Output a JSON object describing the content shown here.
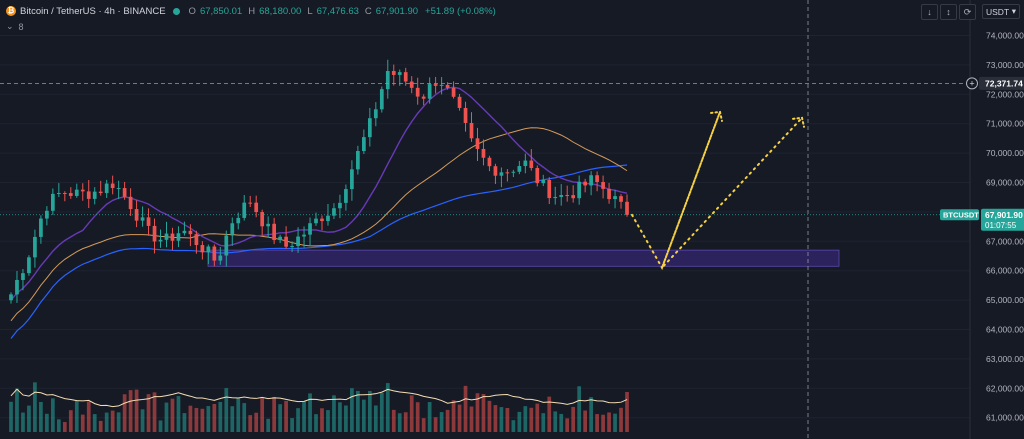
{
  "header": {
    "symbol_title": "Bitcoin / TetherUS · 4h · BINANCE",
    "open_label": "O",
    "open_value": "67,850.01",
    "high_label": "H",
    "high_value": "68,180.00",
    "low_label": "L",
    "low_value": "67,476.63",
    "close_label": "C",
    "close_value": "67,901.90",
    "change": "+51.89 (+0.08%)",
    "indicator_toggle": "⌄",
    "indicator_count": "8"
  },
  "toolbar": {
    "btn1": "↓",
    "btn2": "↕",
    "btn3": "⟳",
    "currency_select": "USDT",
    "currency_caret": "▾"
  },
  "price_axis": {
    "ticks": [
      "74,000.00",
      "73,000.00",
      "72,000.00",
      "71,000.00",
      "70,000.00",
      "69,000.00",
      "68,000.00",
      "67,000.00",
      "66,000.00",
      "65,000.00",
      "64,000.00",
      "63,000.00",
      "62,000.00",
      "61,000.00"
    ],
    "crosshair_price": "72,371.74",
    "crosshair_plus": "+",
    "symbol_badge": "BTCUSDT",
    "current_price": "67,901.90",
    "countdown": "01:07:55"
  },
  "colors": {
    "background": "#161a25",
    "bull": "#26a69a",
    "bear": "#ef5350",
    "ma_fast": "#673ab7",
    "ma_mid": "#d39a5a",
    "ma_slow": "#2962ff",
    "vol_ma": "#f5deb3",
    "zone": "#3f2b8a",
    "projection": "#f5d142"
  },
  "chart_data": {
    "type": "candlestick",
    "y_range": [
      60600,
      74300
    ],
    "ticks": [
      74000,
      73000,
      72000,
      71000,
      70000,
      69000,
      68000,
      67000,
      66000,
      65000,
      64000,
      63000,
      62000,
      61000
    ],
    "support_zone": [
      66150,
      66700
    ],
    "crosshair_level": 72371.74,
    "last_price": 67901.9,
    "anchors": [
      65200,
      66500,
      68200,
      68700,
      68600,
      68700,
      69000,
      68250,
      67300,
      67000,
      67400,
      66900,
      66300,
      67800,
      68400,
      67400,
      66800,
      67200,
      67800,
      68200,
      69600,
      71000,
      72800,
      72500,
      71900,
      72600,
      71600,
      70200,
      69500,
      69400,
      69700,
      68900,
      68500,
      68700,
      69100,
      68600,
      67900
    ],
    "projection_path": [
      [
        67900,
        68200
      ],
      [
        66100,
        66100
      ],
      [
        71400,
        71400
      ],
      [
        66100,
        66100
      ],
      [
        71200,
        71200
      ]
    ],
    "volume_ma_level": 0.3
  }
}
